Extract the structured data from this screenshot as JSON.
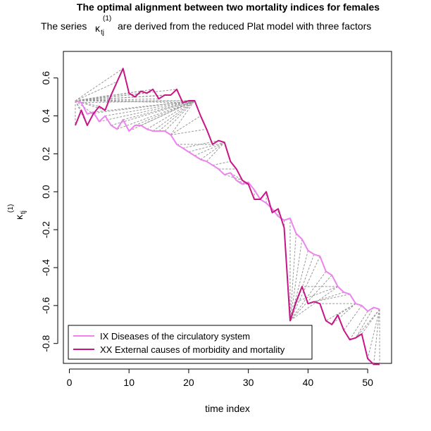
{
  "chart_data": {
    "type": "line",
    "title": "The optimal alignment between two mortality indices for females",
    "subtitle": {
      "prefix": "The series",
      "symbol": "κ",
      "subscript": "tj",
      "superscript": "(1)",
      "suffix": "are derived from the reduced Plat model with three factors"
    },
    "xlabel": "time index",
    "ylabel": {
      "symbol": "κ",
      "subscript": "tj",
      "superscript": "(1)"
    },
    "xlim": [
      -1,
      54
    ],
    "ylim": [
      -0.905,
      0.74
    ],
    "xticks": [
      0,
      10,
      20,
      30,
      40,
      50
    ],
    "yticks": [
      -0.8,
      -0.6,
      -0.4,
      -0.2,
      0.0,
      0.2,
      0.4,
      0.6
    ],
    "ytick_labels": [
      "-0.8",
      "-0.6",
      "-0.4",
      "-0.2",
      "0.0",
      "0.2",
      "0.4",
      "0.6"
    ],
    "legend_position": "bottom-left",
    "grid": false,
    "colors": {
      "series_ix": "#ee82ee",
      "series_xx": "#c71585",
      "alignment": "#999999"
    },
    "x": [
      1,
      2,
      3,
      4,
      5,
      6,
      7,
      8,
      9,
      10,
      11,
      12,
      13,
      14,
      15,
      16,
      17,
      18,
      19,
      20,
      21,
      22,
      23,
      24,
      25,
      26,
      27,
      28,
      29,
      30,
      31,
      32,
      33,
      34,
      35,
      36,
      37,
      38,
      39,
      40,
      41,
      42,
      43,
      44,
      45,
      46,
      47,
      48,
      49,
      50,
      51,
      52
    ],
    "series": [
      {
        "name": "IX Diseases of the circulatory system",
        "values": [
          0.48,
          0.47,
          0.41,
          0.42,
          0.37,
          0.4,
          0.35,
          0.33,
          0.38,
          0.32,
          0.35,
          0.35,
          0.33,
          0.32,
          0.32,
          0.32,
          0.3,
          0.25,
          0.23,
          0.21,
          0.19,
          0.17,
          0.16,
          0.14,
          0.12,
          0.09,
          0.1,
          0.06,
          0.04,
          0.05,
          0.01,
          -0.04,
          -0.06,
          -0.09,
          -0.13,
          -0.15,
          -0.14,
          -0.22,
          -0.25,
          -0.31,
          -0.33,
          -0.34,
          -0.42,
          -0.44,
          -0.5,
          -0.53,
          -0.54,
          -0.59,
          -0.6,
          -0.63,
          -0.61,
          -0.62
        ]
      },
      {
        "name": "XX External causes of morbidity and mortality",
        "values": [
          0.35,
          0.43,
          0.35,
          0.41,
          0.45,
          0.43,
          0.51,
          0.58,
          0.65,
          0.52,
          0.5,
          0.53,
          0.52,
          0.54,
          0.49,
          0.51,
          0.51,
          0.54,
          0.47,
          0.48,
          0.48,
          0.4,
          0.33,
          0.25,
          0.27,
          0.26,
          0.16,
          0.12,
          0.06,
          0.04,
          -0.04,
          -0.04,
          0.0,
          -0.11,
          -0.09,
          -0.19,
          -0.68,
          -0.58,
          -0.5,
          -0.59,
          -0.58,
          -0.59,
          -0.68,
          -0.7,
          -0.65,
          -0.73,
          -0.78,
          -0.77,
          -0.75,
          -0.88,
          -0.91,
          -0.91
        ]
      }
    ],
    "alignment_pairs": [
      [
        1,
        1
      ],
      [
        1,
        2
      ],
      [
        1,
        3
      ],
      [
        1,
        4
      ],
      [
        1,
        5
      ],
      [
        1,
        6
      ],
      [
        1,
        7
      ],
      [
        1,
        8
      ],
      [
        1,
        9
      ],
      [
        1,
        10
      ],
      [
        1,
        11
      ],
      [
        1,
        12
      ],
      [
        1,
        13
      ],
      [
        1,
        14
      ],
      [
        1,
        15
      ],
      [
        1,
        16
      ],
      [
        1,
        17
      ],
      [
        1,
        18
      ],
      [
        1,
        19
      ],
      [
        1,
        20
      ],
      [
        1,
        21
      ],
      [
        2,
        21
      ],
      [
        3,
        21
      ],
      [
        4,
        21
      ],
      [
        5,
        21
      ],
      [
        6,
        21
      ],
      [
        7,
        21
      ],
      [
        8,
        21
      ],
      [
        9,
        21
      ],
      [
        10,
        21
      ],
      [
        11,
        21
      ],
      [
        12,
        21
      ],
      [
        13,
        21
      ],
      [
        14,
        21
      ],
      [
        15,
        21
      ],
      [
        16,
        21
      ],
      [
        17,
        21
      ],
      [
        17,
        22
      ],
      [
        17,
        23
      ],
      [
        18,
        24
      ],
      [
        19,
        25
      ],
      [
        20,
        26
      ],
      [
        21,
        26
      ],
      [
        22,
        26
      ],
      [
        23,
        26
      ],
      [
        24,
        27
      ],
      [
        25,
        28
      ],
      [
        26,
        29
      ],
      [
        27,
        30
      ],
      [
        28,
        30
      ],
      [
        29,
        30
      ],
      [
        30,
        30
      ],
      [
        31,
        31
      ],
      [
        32,
        32
      ],
      [
        33,
        33
      ],
      [
        34,
        34
      ],
      [
        35,
        35
      ],
      [
        36,
        36
      ],
      [
        37,
        37
      ],
      [
        38,
        37
      ],
      [
        39,
        37
      ],
      [
        40,
        37
      ],
      [
        41,
        37
      ],
      [
        42,
        37
      ],
      [
        43,
        37
      ],
      [
        44,
        37
      ],
      [
        45,
        37
      ],
      [
        45,
        38
      ],
      [
        45,
        39
      ],
      [
        46,
        40
      ],
      [
        47,
        41
      ],
      [
        48,
        42
      ],
      [
        48,
        43
      ],
      [
        48,
        44
      ],
      [
        48,
        45
      ],
      [
        49,
        46
      ],
      [
        50,
        47
      ],
      [
        51,
        48
      ],
      [
        52,
        48
      ],
      [
        52,
        49
      ],
      [
        52,
        50
      ],
      [
        52,
        51
      ],
      [
        52,
        52
      ]
    ]
  }
}
